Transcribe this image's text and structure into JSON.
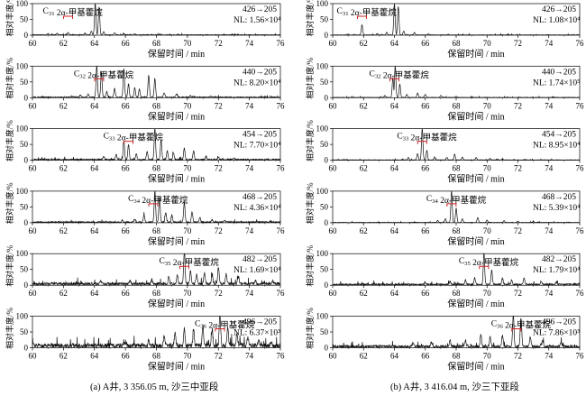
{
  "figure": {
    "caption_left": "(a) A井, 3 356.05 m, 沙三中亚段",
    "caption_right": "(b) A井, 3 416.04 m, 沙三下亚段"
  },
  "chart_data": [
    {
      "type": "line",
      "column": "a",
      "ylabel": "相对丰度/%",
      "xlabel": "保留时间 / min",
      "xlim": [
        60,
        76
      ],
      "ylim": [
        0,
        100
      ],
      "yticks": [
        0,
        50,
        100
      ],
      "xticks": [
        60,
        62,
        64,
        66,
        68,
        70,
        72,
        74,
        76
      ],
      "transition": "426→205",
      "nl": "NL: 1.56×10⁴",
      "compound": "C₃₁ 2α-甲基藿烷",
      "marker_x": 62.3,
      "series": [
        {
          "peaks": [
            [
              61.0,
              4
            ],
            [
              61.6,
              5
            ],
            [
              62.3,
              7
            ],
            [
              63.4,
              5
            ],
            [
              63.8,
              12
            ],
            [
              64.05,
              100
            ],
            [
              64.3,
              88
            ],
            [
              64.6,
              10
            ],
            [
              65.3,
              7
            ],
            [
              65.9,
              3
            ],
            [
              66.6,
              3
            ],
            [
              67.7,
              2
            ]
          ],
          "noise": 2.0
        }
      ]
    },
    {
      "type": "line",
      "column": "a",
      "ylabel": "相对丰度/%",
      "xlabel": "保留时间 / min",
      "xlim": [
        60,
        76
      ],
      "ylim": [
        0,
        100
      ],
      "yticks": [
        0,
        50,
        100
      ],
      "xticks": [
        60,
        62,
        64,
        66,
        68,
        70,
        72,
        74,
        76
      ],
      "transition": "440→205",
      "nl": "NL: 8.20×10⁴",
      "compound": "C₃₂ 2α-甲基藿烷",
      "marker_x": 64.3,
      "series": [
        {
          "peaks": [
            [
              63.1,
              8
            ],
            [
              63.6,
              10
            ],
            [
              64.15,
              100
            ],
            [
              64.45,
              78
            ],
            [
              64.8,
              18
            ],
            [
              65.3,
              28
            ],
            [
              65.9,
              90
            ],
            [
              66.2,
              42
            ],
            [
              66.6,
              30
            ],
            [
              66.9,
              26
            ],
            [
              67.5,
              70
            ],
            [
              67.9,
              60
            ],
            [
              68.5,
              14
            ],
            [
              69.3,
              10
            ],
            [
              70.2,
              5
            ],
            [
              71.5,
              3
            ]
          ],
          "noise": 3.0
        }
      ]
    },
    {
      "type": "line",
      "column": "a",
      "ylabel": "相对丰度/%",
      "xlabel": "保留时间 / min",
      "xlim": [
        60,
        76
      ],
      "ylim": [
        0,
        100
      ],
      "yticks": [
        0,
        50,
        100
      ],
      "xticks": [
        60,
        62,
        64,
        66,
        68,
        70,
        72,
        74,
        76
      ],
      "transition": "454→205",
      "nl": "NL: 7.70×10⁴",
      "compound": "C₃₃ 2α-甲基藿烷",
      "marker_x": 66.2,
      "series": [
        {
          "peaks": [
            [
              64.6,
              10
            ],
            [
              65.4,
              16
            ],
            [
              65.9,
              58
            ],
            [
              66.2,
              48
            ],
            [
              66.7,
              18
            ],
            [
              67.4,
              25
            ],
            [
              67.9,
              100
            ],
            [
              68.3,
              62
            ],
            [
              68.7,
              28
            ],
            [
              69.1,
              20
            ],
            [
              69.8,
              36
            ],
            [
              70.4,
              26
            ],
            [
              71.2,
              10
            ],
            [
              72.0,
              8
            ],
            [
              73.0,
              4
            ]
          ],
          "noise": 4.0
        }
      ]
    },
    {
      "type": "line",
      "column": "a",
      "ylabel": "相对丰度/%",
      "xlabel": "保留时间 / min",
      "xlim": [
        60,
        76
      ],
      "ylim": [
        0,
        100
      ],
      "yticks": [
        0,
        50,
        100
      ],
      "xticks": [
        60,
        62,
        64,
        66,
        68,
        70,
        72,
        74,
        76
      ],
      "transition": "468→205",
      "nl": "NL: 4.36×10⁴",
      "compound": "C₃₄ 2α-甲基藿烷",
      "marker_x": 67.8,
      "series": [
        {
          "peaks": [
            [
              65.8,
              6
            ],
            [
              66.6,
              10
            ],
            [
              67.2,
              22
            ],
            [
              67.9,
              100
            ],
            [
              68.2,
              80
            ],
            [
              68.6,
              30
            ],
            [
              69.0,
              22
            ],
            [
              69.8,
              65
            ],
            [
              70.3,
              32
            ],
            [
              70.8,
              15
            ],
            [
              71.6,
              8
            ],
            [
              72.4,
              5
            ]
          ],
          "noise": 4.0
        }
      ]
    },
    {
      "type": "line",
      "column": "a",
      "ylabel": "相对丰度/%",
      "xlabel": "保留时间 / min",
      "xlim": [
        60,
        76
      ],
      "ylim": [
        0,
        100
      ],
      "yticks": [
        0,
        50,
        100
      ],
      "xticks": [
        60,
        62,
        64,
        66,
        68,
        70,
        72,
        74,
        76
      ],
      "transition": "482→205",
      "nl": "NL: 1.69×10⁴",
      "compound": "C₃₅ 2α-甲基藿烷",
      "marker_x": 69.8,
      "series": [
        {
          "peaks": [
            [
              64.4,
              8
            ],
            [
              66.3,
              10
            ],
            [
              67.7,
              14
            ],
            [
              68.8,
              22
            ],
            [
              69.35,
              28
            ],
            [
              69.8,
              100
            ],
            [
              70.2,
              40
            ],
            [
              70.6,
              28
            ],
            [
              71.1,
              35
            ],
            [
              71.6,
              30
            ],
            [
              72.0,
              55
            ],
            [
              72.5,
              30
            ],
            [
              73.3,
              22
            ],
            [
              74.4,
              10
            ],
            [
              75.5,
              8
            ]
          ],
          "noise": 9.0
        }
      ]
    },
    {
      "type": "line",
      "column": "a",
      "ylabel": "相对丰度/%",
      "xlabel": "保留时间 / min",
      "xlim": [
        60,
        76
      ],
      "ylim": [
        0,
        100
      ],
      "yticks": [
        0,
        50,
        100
      ],
      "xticks": [
        60,
        62,
        64,
        66,
        68,
        70,
        72,
        74,
        76
      ],
      "transition": "496→205",
      "nl": "NL: 6.37×10³",
      "compound": "C₃₆ 2α-甲基藿烷",
      "marker_x": 72.1,
      "series": [
        {
          "peaks": [
            [
              66.0,
              12
            ],
            [
              67.5,
              15
            ],
            [
              68.5,
              30
            ],
            [
              69.2,
              40
            ],
            [
              69.8,
              55
            ],
            [
              70.4,
              48
            ],
            [
              71.0,
              62
            ],
            [
              71.6,
              52
            ],
            [
              72.1,
              100
            ],
            [
              72.6,
              58
            ],
            [
              73.2,
              40
            ],
            [
              73.9,
              28
            ],
            [
              74.6,
              18
            ],
            [
              75.4,
              12
            ]
          ],
          "noise": 14.0
        }
      ]
    },
    {
      "type": "line",
      "column": "b",
      "ylabel": "相对丰度/%",
      "xlabel": "保留时间 / min",
      "xlim": [
        60,
        76
      ],
      "ylim": [
        0,
        100
      ],
      "yticks": [
        0,
        50,
        100
      ],
      "xticks": [
        60,
        62,
        64,
        66,
        68,
        70,
        72,
        74,
        76
      ],
      "transition": "426→205",
      "nl": "NL: 1.08×10⁴",
      "compound": "C₃₁ 2α-甲基藿烷",
      "marker_x": 61.9,
      "series": [
        {
          "peaks": [
            [
              61.0,
              3
            ],
            [
              61.9,
              32
            ],
            [
              62.9,
              4
            ],
            [
              63.5,
              8
            ],
            [
              64.0,
              100
            ],
            [
              64.25,
              90
            ],
            [
              64.6,
              12
            ],
            [
              65.3,
              8
            ],
            [
              66.2,
              3
            ],
            [
              67.5,
              2
            ]
          ],
          "noise": 1.5
        }
      ]
    },
    {
      "type": "line",
      "column": "b",
      "ylabel": "相对丰度/%",
      "xlabel": "保留时间 / min",
      "xlim": [
        60,
        76
      ],
      "ylim": [
        0,
        100
      ],
      "yticks": [
        0,
        50,
        100
      ],
      "xticks": [
        60,
        62,
        64,
        66,
        68,
        70,
        72,
        74,
        76
      ],
      "transition": "440→205",
      "nl": "NL: 1.74×10⁵",
      "compound": "C₃₂ 2α-甲基藿烷",
      "marker_x": 64.0,
      "series": [
        {
          "peaks": [
            [
              63.4,
              5
            ],
            [
              63.9,
              62
            ],
            [
              64.05,
              100
            ],
            [
              64.35,
              42
            ],
            [
              64.8,
              10
            ],
            [
              65.5,
              14
            ],
            [
              66.0,
              10
            ],
            [
              67.0,
              6
            ],
            [
              68.0,
              4
            ],
            [
              69.0,
              3
            ]
          ],
          "noise": 1.5
        }
      ]
    },
    {
      "type": "line",
      "column": "b",
      "ylabel": "相对丰度/%",
      "xlabel": "保留时间 / min",
      "xlim": [
        60,
        76
      ],
      "ylim": [
        0,
        100
      ],
      "yticks": [
        0,
        50,
        100
      ],
      "xticks": [
        60,
        62,
        64,
        66,
        68,
        70,
        72,
        74,
        76
      ],
      "transition": "454→205",
      "nl": "NL: 8.95×10⁴",
      "compound": "C₃₃ 2α-甲基藿烷",
      "marker_x": 65.8,
      "series": [
        {
          "peaks": [
            [
              64.9,
              8
            ],
            [
              65.5,
              20
            ],
            [
              65.8,
              100
            ],
            [
              66.1,
              30
            ],
            [
              66.6,
              10
            ],
            [
              67.4,
              8
            ],
            [
              67.9,
              18
            ],
            [
              68.4,
              9
            ],
            [
              69.3,
              8
            ],
            [
              70.2,
              5
            ],
            [
              71.0,
              3
            ]
          ],
          "noise": 1.5
        }
      ]
    },
    {
      "type": "line",
      "column": "b",
      "ylabel": "相对丰度/%",
      "xlabel": "保留时间 / min",
      "xlim": [
        60,
        76
      ],
      "ylim": [
        0,
        100
      ],
      "yticks": [
        0,
        50,
        100
      ],
      "xticks": [
        60,
        62,
        64,
        66,
        68,
        70,
        72,
        74,
        76
      ],
      "transition": "468→205",
      "nl": "NL: 5.39×10⁴",
      "compound": "C₃₄ 2α-甲基藿烷",
      "marker_x": 67.7,
      "series": [
        {
          "peaks": [
            [
              66.8,
              6
            ],
            [
              67.3,
              12
            ],
            [
              67.7,
              100
            ],
            [
              68.0,
              45
            ],
            [
              68.4,
              12
            ],
            [
              69.4,
              16
            ],
            [
              70.0,
              8
            ],
            [
              71.1,
              6
            ],
            [
              72.0,
              4
            ],
            [
              73.0,
              3
            ]
          ],
          "noise": 1.5
        }
      ]
    },
    {
      "type": "line",
      "column": "b",
      "ylabel": "相对丰度/%",
      "xlabel": "保留时间 / min",
      "xlim": [
        60,
        76
      ],
      "ylim": [
        0,
        100
      ],
      "yticks": [
        0,
        50,
        100
      ],
      "xticks": [
        60,
        62,
        64,
        66,
        68,
        70,
        72,
        74,
        76
      ],
      "transition": "482→205",
      "nl": "NL: 1.79×10⁴",
      "compound": "C₃₅ 2α-甲基藿烷",
      "marker_x": 69.8,
      "series": [
        {
          "peaks": [
            [
              66.0,
              6
            ],
            [
              67.6,
              10
            ],
            [
              68.6,
              14
            ],
            [
              69.2,
              20
            ],
            [
              69.8,
              100
            ],
            [
              70.3,
              45
            ],
            [
              71.0,
              20
            ],
            [
              71.6,
              14
            ],
            [
              72.4,
              22
            ],
            [
              73.5,
              10
            ],
            [
              74.5,
              8
            ]
          ],
          "noise": 5.0
        }
      ]
    },
    {
      "type": "line",
      "column": "b",
      "ylabel": "相对丰度/%",
      "xlabel": "保留时间 / min",
      "xlim": [
        60,
        76
      ],
      "ylim": [
        0,
        100
      ],
      "yticks": [
        0,
        50,
        100
      ],
      "xticks": [
        60,
        62,
        64,
        66,
        68,
        70,
        72,
        74,
        76
      ],
      "transition": "496→205",
      "nl": "NL: 7.86×10³",
      "compound": "C₃₆ 2α-甲基藿烷",
      "marker_x": 71.9,
      "series": [
        {
          "peaks": [
            [
              65.2,
              12
            ],
            [
              66.4,
              14
            ],
            [
              67.6,
              22
            ],
            [
              68.6,
              20
            ],
            [
              69.6,
              38
            ],
            [
              70.2,
              30
            ],
            [
              71.0,
              36
            ],
            [
              71.7,
              100
            ],
            [
              72.2,
              92
            ],
            [
              72.8,
              28
            ],
            [
              73.6,
              20
            ],
            [
              74.8,
              14
            ]
          ],
          "noise": 8.0
        }
      ]
    }
  ]
}
